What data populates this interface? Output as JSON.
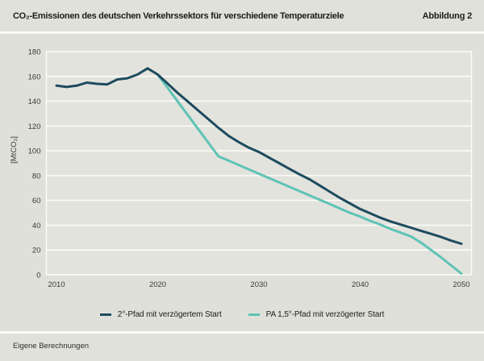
{
  "header": {
    "title": "CO₂-Emissionen des deutschen Verkehrssektors für verschiedene Temperaturziele",
    "figure_label": "Abbildung 2"
  },
  "footer": {
    "source": "Eigene Berechnungen"
  },
  "colors": {
    "page_background": "#e1e1db",
    "panel_background": "#e0e0da",
    "plot_background": "#e3e3dd",
    "grid": "#fcfcfa",
    "line_2deg": "#1d4b5f",
    "line_15deg": "#5ec3b5",
    "text": "#1c1c1a",
    "tick_text": "#3a3a38"
  },
  "chart_data": {
    "type": "line",
    "title": "CO₂-Emissionen des deutschen Verkehrssektors für verschiedene Temperaturziele",
    "xlabel": "",
    "ylabel": "[MtCO₂]",
    "ylim": [
      0,
      180
    ],
    "yticks": [
      0,
      20,
      40,
      60,
      80,
      100,
      120,
      140,
      160,
      180
    ],
    "xlim": [
      2009,
      2051
    ],
    "xticks": [
      2010,
      2020,
      2030,
      2040,
      2050
    ],
    "grid": true,
    "legend_position": "bottom",
    "series": [
      {
        "name": "2°-Pfad mit verzögertem Start",
        "color": "#1d4b5f",
        "x": [
          2010,
          2011,
          2012,
          2013,
          2014,
          2015,
          2016,
          2017,
          2018,
          2019,
          2020,
          2021,
          2022,
          2023,
          2024,
          2025,
          2026,
          2027,
          2028,
          2029,
          2030,
          2031,
          2032,
          2033,
          2034,
          2035,
          2036,
          2037,
          2038,
          2039,
          2040,
          2041,
          2042,
          2043,
          2044,
          2045,
          2046,
          2047,
          2048,
          2049,
          2050
        ],
        "values": [
          152.5,
          151.5,
          152.5,
          155,
          154,
          153.5,
          157.5,
          158.5,
          161.5,
          166.5,
          161.5,
          154,
          146.5,
          139.5,
          132.5,
          125.5,
          118.5,
          112,
          107,
          102.5,
          99,
          94.5,
          90,
          85.5,
          81,
          77,
          72,
          67,
          62,
          57.5,
          53,
          49.5,
          46,
          43,
          40.5,
          38,
          35.5,
          33,
          30.5,
          27.5,
          25
        ]
      },
      {
        "name": "PA 1,5°-Pfad mit verzögerter Start",
        "color": "#5ec3b5",
        "x": [
          2020,
          2021,
          2022,
          2023,
          2024,
          2025,
          2026,
          2027,
          2028,
          2029,
          2030,
          2031,
          2032,
          2033,
          2034,
          2035,
          2036,
          2037,
          2038,
          2039,
          2040,
          2041,
          2042,
          2043,
          2044,
          2045,
          2046,
          2047,
          2048,
          2049,
          2050
        ],
        "values": [
          161.5,
          150.5,
          139.5,
          128.5,
          117.5,
          106.5,
          95.5,
          92,
          88.5,
          85,
          81.5,
          78,
          74.5,
          71,
          67.5,
          64,
          60.5,
          57,
          53.5,
          50,
          47,
          43.5,
          40.5,
          37,
          34,
          31,
          26,
          20,
          14,
          7.5,
          1
        ]
      }
    ]
  }
}
